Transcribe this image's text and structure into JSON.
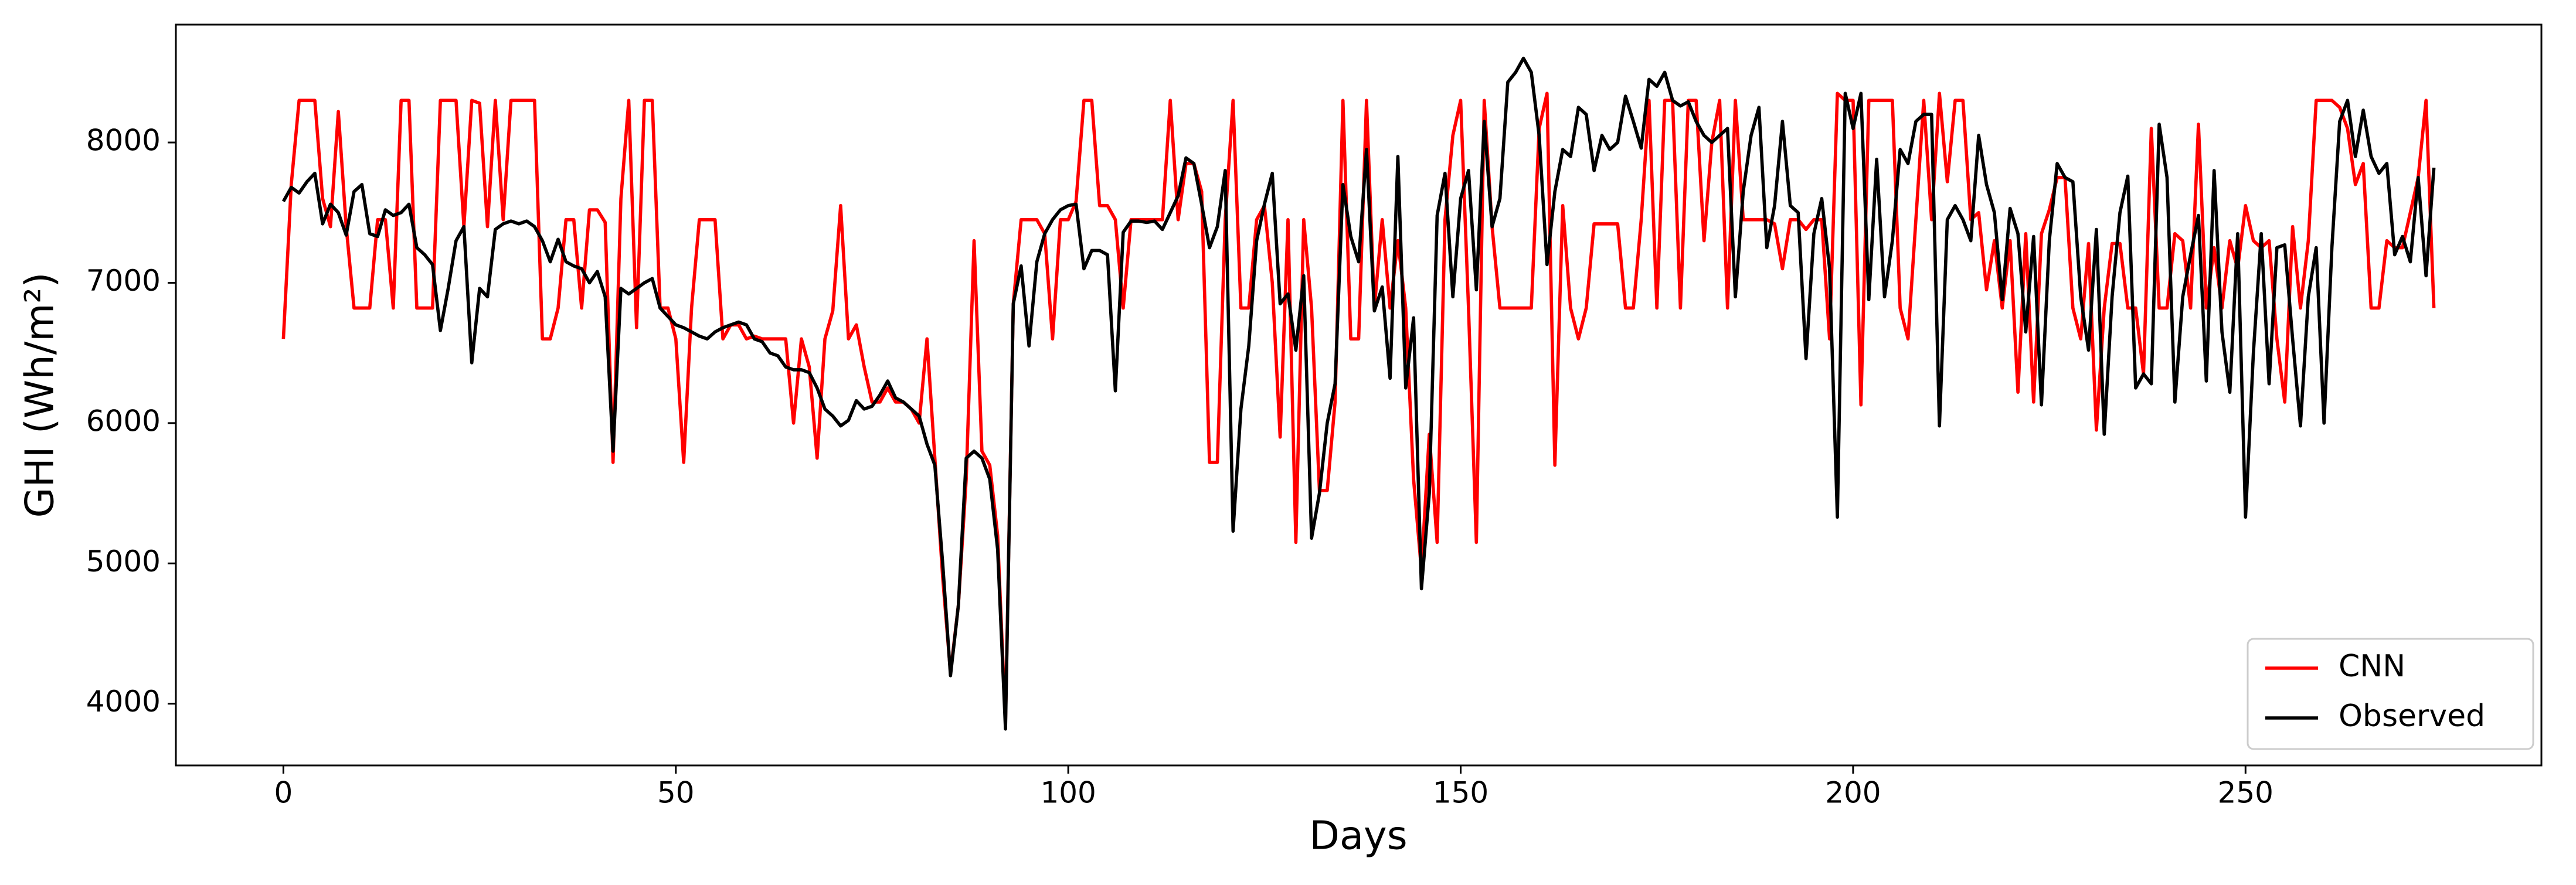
{
  "chart_data": {
    "type": "line",
    "x_label": "Days",
    "y_label": "GHI (Wh/m²)",
    "x": [
      0,
      1,
      2,
      3,
      4,
      5,
      6,
      7,
      8,
      9,
      10,
      11,
      12,
      13,
      14,
      15,
      16,
      17,
      18,
      19,
      20,
      21,
      22,
      23,
      24,
      25,
      26,
      27,
      28,
      29,
      30,
      31,
      32,
      33,
      34,
      35,
      36,
      37,
      38,
      39,
      40,
      41,
      42,
      43,
      44,
      45,
      46,
      47,
      48,
      49,
      50,
      51,
      52,
      53,
      54,
      55,
      56,
      57,
      58,
      59,
      60,
      61,
      62,
      63,
      64,
      65,
      66,
      67,
      68,
      69,
      70,
      71,
      72,
      73,
      74,
      75,
      76,
      77,
      78,
      79,
      80,
      81,
      82,
      83,
      84,
      85,
      86,
      87,
      88,
      89,
      90,
      91,
      92,
      93,
      94,
      95,
      96,
      97,
      98,
      99,
      100,
      101,
      102,
      103,
      104,
      105,
      106,
      107,
      108,
      109,
      110,
      111,
      112,
      113,
      114,
      115,
      116,
      117,
      118,
      119,
      120,
      121,
      122,
      123,
      124,
      125,
      126,
      127,
      128,
      129,
      130,
      131,
      132,
      133,
      134,
      135,
      136,
      137,
      138,
      139,
      140,
      141,
      142,
      143,
      144,
      145,
      146,
      147,
      148,
      149,
      150,
      151,
      152,
      153,
      154,
      155,
      156,
      157,
      158,
      159,
      160,
      161,
      162,
      163,
      164,
      165,
      166,
      167,
      168,
      169,
      170,
      171,
      172,
      173,
      174,
      175,
      176,
      177,
      178,
      179,
      180,
      181,
      182,
      183,
      184,
      185,
      186,
      187,
      188,
      189,
      190,
      191,
      192,
      193,
      194,
      195,
      196,
      197,
      198,
      199,
      200,
      201,
      202,
      203,
      204,
      205,
      206,
      207,
      208,
      209,
      210,
      211,
      212,
      213,
      214,
      215,
      216,
      217,
      218,
      219,
      220,
      221,
      222,
      223,
      224,
      225,
      226,
      227,
      228,
      229,
      230,
      231,
      232,
      233,
      234,
      235,
      236,
      237,
      238,
      239,
      240,
      241,
      242,
      243,
      244,
      245,
      246,
      247,
      248,
      249,
      250,
      251,
      252,
      253,
      254,
      255,
      256,
      257,
      258,
      259,
      260,
      261,
      262,
      263,
      264,
      265,
      266,
      267,
      268,
      269,
      270,
      271,
      272,
      273,
      274
    ],
    "series": [
      {
        "name": "CNN",
        "color": "#ff0000",
        "values": [
          6600,
          7700,
          8300,
          8300,
          8300,
          7600,
          7400,
          8220,
          7400,
          6820,
          6820,
          6820,
          7450,
          7450,
          6820,
          8300,
          8300,
          6820,
          6820,
          6820,
          8300,
          8300,
          8300,
          7400,
          8300,
          8280,
          7400,
          8300,
          7450,
          8300,
          8300,
          8300,
          8300,
          6600,
          6600,
          6820,
          7450,
          7450,
          6820,
          7520,
          7520,
          7430,
          5720,
          7600,
          8300,
          6680,
          8300,
          8300,
          6820,
          6820,
          6600,
          5720,
          6820,
          7450,
          7450,
          7450,
          6600,
          6700,
          6700,
          6600,
          6620,
          6600,
          6600,
          6600,
          6600,
          6000,
          6600,
          6400,
          5750,
          6600,
          6800,
          7550,
          6600,
          6700,
          6400,
          6150,
          6150,
          6250,
          6150,
          6150,
          6100,
          6000,
          6600,
          5750,
          4900,
          4220,
          4700,
          5600,
          7300,
          5800,
          5700,
          5200,
          3860,
          6850,
          7450,
          7450,
          7450,
          7350,
          6600,
          7450,
          7450,
          7580,
          8300,
          8300,
          7550,
          7550,
          7450,
          6820,
          7450,
          7450,
          7450,
          7450,
          7450,
          8300,
          7450,
          7850,
          7850,
          7650,
          5720,
          5720,
          7450,
          8300,
          6820,
          6820,
          7450,
          7550,
          7000,
          5900,
          7450,
          5150,
          7450,
          6820,
          5520,
          5520,
          6150,
          8300,
          6600,
          6600,
          8300,
          6820,
          7450,
          6820,
          7300,
          6820,
          5600,
          4950,
          5920,
          5150,
          7450,
          8050,
          8300,
          6820,
          5150,
          8300,
          7400,
          6820,
          6820,
          6820,
          6820,
          6820,
          8100,
          8350,
          5700,
          7550,
          6820,
          6600,
          6820,
          7420,
          7420,
          7420,
          7420,
          6820,
          6820,
          7450,
          8300,
          6820,
          8300,
          8300,
          6820,
          8300,
          8300,
          7300,
          8000,
          8300,
          6820,
          8300,
          7450,
          7450,
          7450,
          7450,
          7420,
          7100,
          7450,
          7450,
          7380,
          7450,
          7450,
          6600,
          8350,
          8300,
          8300,
          6130,
          8300,
          8300,
          8300,
          8300,
          6820,
          6600,
          7450,
          8300,
          7450,
          8350,
          7720,
          8300,
          8300,
          7450,
          7500,
          6950,
          7300,
          6820,
          7300,
          6220,
          7350,
          6150,
          7350,
          7520,
          7750,
          7750,
          6820,
          6600,
          7280,
          5950,
          6820,
          7280,
          7280,
          6820,
          6820,
          6350,
          8100,
          6820,
          6820,
          7350,
          7300,
          6820,
          8130,
          6820,
          7250,
          6820,
          7300,
          7100,
          7550,
          7300,
          7250,
          7300,
          6600,
          6150,
          7400,
          6820,
          7300,
          8300,
          8300,
          8300,
          8250,
          8100,
          7700,
          7850,
          6820,
          6820,
          7300,
          7250,
          7250,
          7500,
          7750,
          8300,
          6820
        ]
      },
      {
        "name": "Observed",
        "color": "#000000",
        "values": [
          7580,
          7680,
          7640,
          7720,
          7780,
          7420,
          7560,
          7500,
          7340,
          7650,
          7700,
          7350,
          7330,
          7520,
          7480,
          7500,
          7560,
          7250,
          7200,
          7130,
          6660,
          6960,
          7300,
          7400,
          6430,
          6960,
          6900,
          7380,
          7420,
          7440,
          7420,
          7440,
          7400,
          7300,
          7150,
          7310,
          7150,
          7120,
          7100,
          7000,
          7080,
          6900,
          5800,
          6960,
          6920,
          6960,
          7000,
          7030,
          6820,
          6760,
          6700,
          6680,
          6650,
          6620,
          6600,
          6650,
          6680,
          6700,
          6720,
          6700,
          6600,
          6580,
          6500,
          6480,
          6400,
          6380,
          6380,
          6360,
          6250,
          6100,
          6050,
          5980,
          6020,
          6160,
          6100,
          6120,
          6200,
          6300,
          6180,
          6150,
          6100,
          6050,
          5850,
          5700,
          5000,
          4200,
          4700,
          5750,
          5800,
          5750,
          5600,
          5100,
          3820,
          6850,
          7120,
          6550,
          7150,
          7350,
          7450,
          7520,
          7550,
          7560,
          7100,
          7230,
          7230,
          7200,
          6230,
          7360,
          7440,
          7440,
          7430,
          7440,
          7380,
          7500,
          7620,
          7890,
          7850,
          7560,
          7250,
          7400,
          7800,
          5230,
          6100,
          6550,
          7300,
          7560,
          7780,
          6850,
          6920,
          6520,
          7050,
          5180,
          5500,
          6000,
          6280,
          7700,
          7330,
          7150,
          7950,
          6800,
          6970,
          6320,
          7900,
          6250,
          6750,
          4820,
          5500,
          7480,
          7780,
          6900,
          7600,
          7800,
          6950,
          8150,
          7400,
          7600,
          8430,
          8500,
          8600,
          8500,
          8050,
          7130,
          7650,
          7950,
          7900,
          8250,
          8200,
          7800,
          8050,
          7950,
          8000,
          8330,
          8150,
          7960,
          8450,
          8400,
          8500,
          8300,
          8260,
          8290,
          8150,
          8050,
          8000,
          8050,
          8100,
          6900,
          7650,
          8050,
          8250,
          7250,
          7550,
          8150,
          7550,
          7500,
          6460,
          7350,
          7600,
          7100,
          5330,
          8350,
          8100,
          8350,
          6880,
          7880,
          6900,
          7300,
          7950,
          7850,
          8150,
          8200,
          8200,
          5980,
          7450,
          7550,
          7450,
          7300,
          8050,
          7700,
          7500,
          6880,
          7530,
          7350,
          6650,
          7330,
          6130,
          7300,
          7850,
          7750,
          7720,
          6900,
          6520,
          7380,
          5920,
          6900,
          7500,
          7760,
          6250,
          6350,
          6280,
          8130,
          7750,
          6150,
          6900,
          7200,
          7480,
          6300,
          7800,
          6650,
          6220,
          7350,
          5330,
          6500,
          7350,
          6280,
          7250,
          7270,
          6600,
          5980,
          6900,
          7250,
          6000,
          7250,
          8150,
          8300,
          7900,
          8230,
          7900,
          7780,
          7850,
          7200,
          7330,
          7150,
          7750,
          7050,
          7820
        ]
      }
    ],
    "xlim": [
      -13.7,
      287.7
    ],
    "ylim": [
      3560,
      8840
    ],
    "xticks": [
      0,
      50,
      100,
      150,
      200,
      250
    ],
    "yticks": [
      4000,
      5000,
      6000,
      7000,
      8000
    ],
    "grid": false,
    "legend": "lower right"
  }
}
